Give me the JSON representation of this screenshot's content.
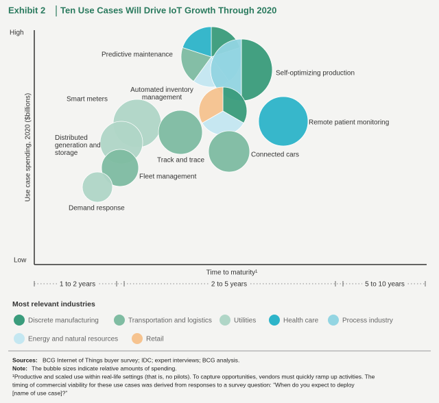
{
  "header": {
    "exhibit": "Exhibit 2",
    "title": "Ten Use Cases Will Drive IoT Growth Through 2020"
  },
  "axes": {
    "y_label": "Use case spending, 2020 ($billions)",
    "y_high": "High",
    "y_low": "Low",
    "x_label": "Time to maturity¹",
    "x_ranges": [
      "1 to 2 years",
      "2 to 5 years",
      "5 to 10 years"
    ]
  },
  "use_cases": [
    {
      "label": "Predictive maintenance",
      "industries": [
        "Discrete manufacturing",
        "Process industry",
        "Energy and natural resources",
        "Transportation and logistics",
        "Health care"
      ]
    },
    {
      "label": "Self-optimizing production",
      "industries": [
        "Discrete manufacturing",
        "Process industry"
      ]
    },
    {
      "label": "Automated inventory management",
      "industries": [
        "Discrete manufacturing",
        "Energy and natural resources",
        "Retail"
      ]
    },
    {
      "label": "Remote patient monitoring",
      "industries": [
        "Health care"
      ]
    },
    {
      "label": "Connected cars",
      "industries": [
        "Transportation and logistics"
      ]
    },
    {
      "label": "Smart meters",
      "industries": [
        "Utilities"
      ]
    },
    {
      "label": "Track and trace",
      "industries": [
        "Transportation and logistics"
      ]
    },
    {
      "label": "Distributed generation and storage",
      "industries": [
        "Utilities"
      ]
    },
    {
      "label": "Fleet management",
      "industries": [
        "Transportation and logistics"
      ]
    },
    {
      "label": "Demand response",
      "industries": [
        "Utilities"
      ]
    }
  ],
  "legend": {
    "title": "Most relevant industries",
    "items": [
      {
        "name": "Discrete manufacturing",
        "color": "#3a9c7c"
      },
      {
        "name": "Transportation and logistics",
        "color": "#7fbca2"
      },
      {
        "name": "Utilities",
        "color": "#b0d6c7"
      },
      {
        "name": "Health care",
        "color": "#2db4c9"
      },
      {
        "name": "Process industry",
        "color": "#93d5e2"
      },
      {
        "name": "Energy and natural resources",
        "color": "#c4e7f1"
      },
      {
        "name": "Retail",
        "color": "#f6c38f"
      }
    ]
  },
  "notes": {
    "sources_label": "Sources:",
    "sources": "BCG Internet of Things buyer survey; IDC; expert interviews; BCG analysis.",
    "note_label": "Note:",
    "note": "The bubble sizes indicate relative amounts of spending.",
    "footnote_lines": [
      "¹Productive and scaled use within real-life settings (that is, no pilots). To capture opportunities, vendors must quickly ramp up activities. The",
      "timing of commercial viability for these use cases was derived from responses to a survey question: “When do you expect to deploy",
      "[name of use case]?”"
    ]
  }
}
